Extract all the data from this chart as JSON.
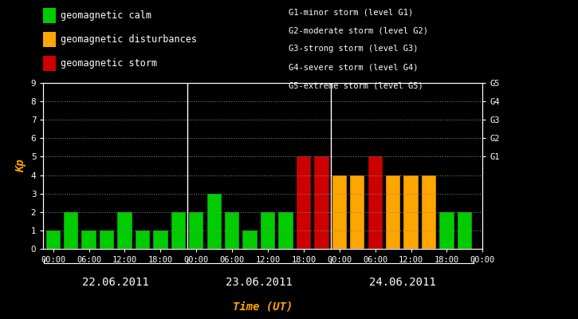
{
  "background_color": "#000000",
  "plot_bg_color": "#000000",
  "bar_edge_color": "#000000",
  "grid_color": "#888888",
  "text_color": "#ffffff",
  "xlabel_color": "#ffa500",
  "kp_label_color": "#ffa500",
  "day_label_color": "#ffffff",
  "legend_text_color": "#ffffff",
  "bar_width": 0.82,
  "ylim": [
    0,
    9
  ],
  "yticks": [
    0,
    1,
    2,
    3,
    4,
    5,
    6,
    7,
    8,
    9
  ],
  "right_yticks": [
    5,
    6,
    7,
    8,
    9
  ],
  "right_ylabels": [
    "G1",
    "G2",
    "G3",
    "G4",
    "G5"
  ],
  "days": [
    "22.06.2011",
    "23.06.2011",
    "24.06.2011"
  ],
  "xlabel": "Time (UT)",
  "ylabel": "Kp",
  "legend_items": [
    {
      "label": "geomagnetic calm",
      "color": "#00cc00"
    },
    {
      "label": "geomagnetic disturbances",
      "color": "#ffa500"
    },
    {
      "label": "geomagnetic storm",
      "color": "#cc0000"
    }
  ],
  "right_legend_lines": [
    "G1-minor storm (level G1)",
    "G2-moderate storm (level G2)",
    "G3-strong storm (level G3)",
    "G4-severe storm (level G4)",
    "G5-extreme storm (level G5)"
  ],
  "bars": [
    {
      "day": 0,
      "slot": 0,
      "kp": 1,
      "color": "#00cc00"
    },
    {
      "day": 0,
      "slot": 1,
      "kp": 2,
      "color": "#00cc00"
    },
    {
      "day": 0,
      "slot": 2,
      "kp": 1,
      "color": "#00cc00"
    },
    {
      "day": 0,
      "slot": 3,
      "kp": 1,
      "color": "#00cc00"
    },
    {
      "day": 0,
      "slot": 4,
      "kp": 2,
      "color": "#00cc00"
    },
    {
      "day": 0,
      "slot": 5,
      "kp": 1,
      "color": "#00cc00"
    },
    {
      "day": 0,
      "slot": 6,
      "kp": 1,
      "color": "#00cc00"
    },
    {
      "day": 0,
      "slot": 7,
      "kp": 2,
      "color": "#00cc00"
    },
    {
      "day": 1,
      "slot": 0,
      "kp": 2,
      "color": "#00cc00"
    },
    {
      "day": 1,
      "slot": 1,
      "kp": 3,
      "color": "#00cc00"
    },
    {
      "day": 1,
      "slot": 2,
      "kp": 2,
      "color": "#00cc00"
    },
    {
      "day": 1,
      "slot": 3,
      "kp": 1,
      "color": "#00cc00"
    },
    {
      "day": 1,
      "slot": 4,
      "kp": 2,
      "color": "#00cc00"
    },
    {
      "day": 1,
      "slot": 5,
      "kp": 2,
      "color": "#00cc00"
    },
    {
      "day": 1,
      "slot": 6,
      "kp": 5,
      "color": "#cc0000"
    },
    {
      "day": 1,
      "slot": 7,
      "kp": 5,
      "color": "#cc0000"
    },
    {
      "day": 2,
      "slot": 0,
      "kp": 4,
      "color": "#ffa500"
    },
    {
      "day": 2,
      "slot": 1,
      "kp": 4,
      "color": "#ffa500"
    },
    {
      "day": 2,
      "slot": 2,
      "kp": 5,
      "color": "#cc0000"
    },
    {
      "day": 2,
      "slot": 3,
      "kp": 4,
      "color": "#ffa500"
    },
    {
      "day": 2,
      "slot": 4,
      "kp": 4,
      "color": "#ffa500"
    },
    {
      "day": 2,
      "slot": 5,
      "kp": 4,
      "color": "#ffa500"
    },
    {
      "day": 2,
      "slot": 6,
      "kp": 2,
      "color": "#00cc00"
    },
    {
      "day": 2,
      "slot": 7,
      "kp": 2,
      "color": "#00cc00"
    }
  ],
  "n_slots_per_day": 8,
  "font_family": "monospace",
  "font_size_ticks": 7.5,
  "font_size_legend": 8.5,
  "font_size_axis_label": 10,
  "font_size_day_label": 10,
  "font_size_right_legend": 7.5
}
